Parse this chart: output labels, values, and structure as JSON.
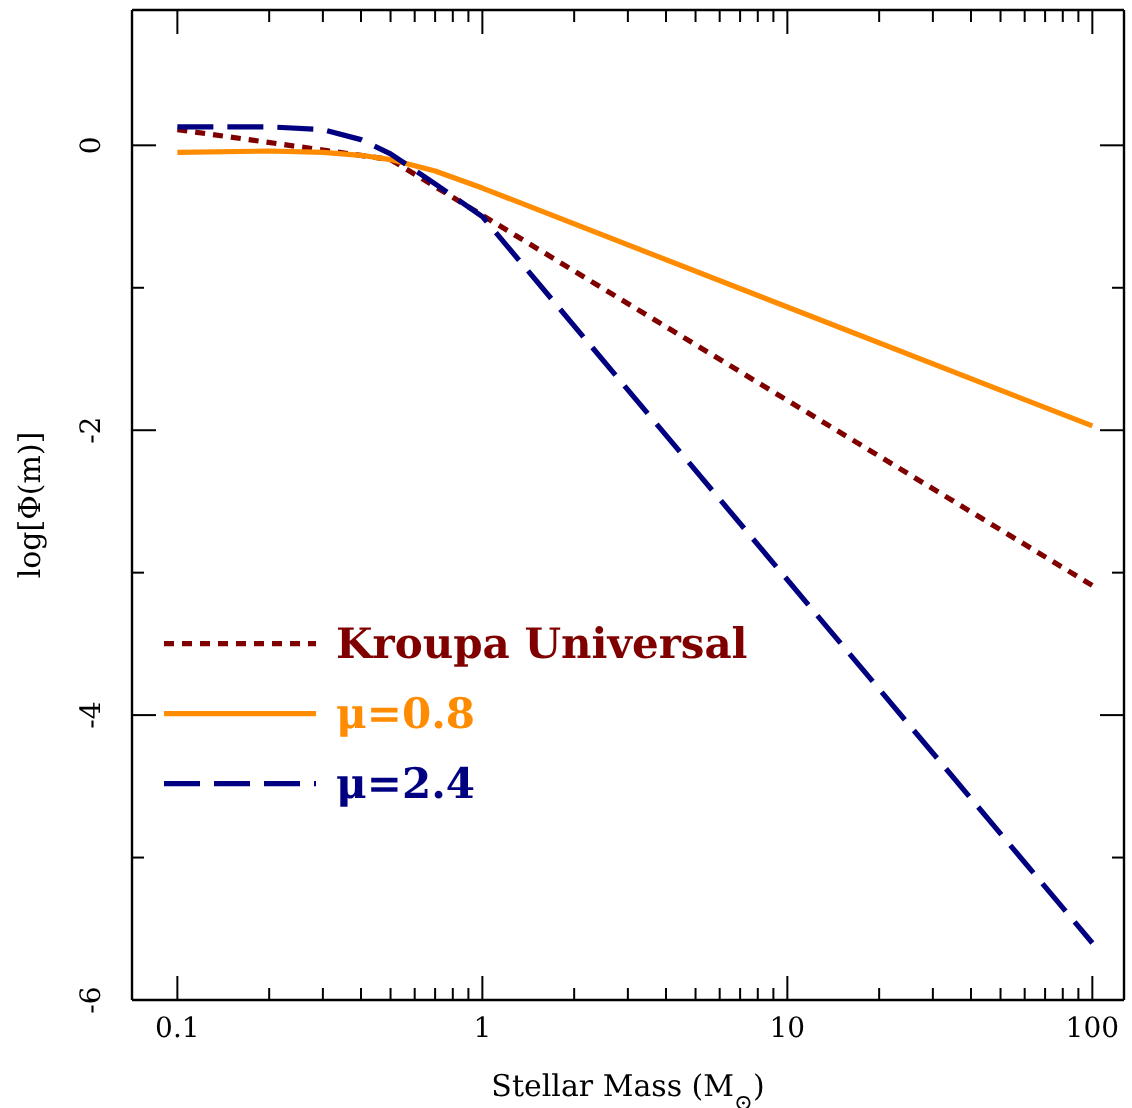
{
  "chart_data": {
    "type": "line",
    "xlabel": "Stellar Mass (M$_{⊙}$)",
    "ylabel": "log[Φ(m)]",
    "log": "x",
    "legend": "left",
    "grid": false,
    "xlim": [
      0.071,
      127
    ],
    "ylim": [
      -6,
      0.95
    ],
    "xticks": [
      0.1,
      {
        "value": 0.2,
        "label": null
      },
      {
        "value": 0.3,
        "label": null
      },
      {
        "value": 0.4,
        "label": null
      },
      {
        "value": 0.5,
        "label": null
      },
      {
        "value": 0.6,
        "label": null
      },
      {
        "value": 0.7,
        "label": null
      },
      {
        "value": 0.8,
        "label": null
      },
      {
        "value": 0.9,
        "label": null
      },
      1,
      {
        "value": 2,
        "label": null
      },
      {
        "value": 3,
        "label": null
      },
      {
        "value": 4,
        "label": null
      },
      {
        "value": 5,
        "label": null
      },
      {
        "value": 6,
        "label": null
      },
      {
        "value": 7,
        "label": null
      },
      {
        "value": 8,
        "label": null
      },
      {
        "value": 9,
        "label": null
      },
      10,
      {
        "value": 20,
        "label": null
      },
      {
        "value": 30,
        "label": null
      },
      {
        "value": 40,
        "label": null
      },
      {
        "value": 50,
        "label": null
      },
      {
        "value": 60,
        "label": null
      },
      {
        "value": 70,
        "label": null
      },
      {
        "value": 80,
        "label": null
      },
      {
        "value": 90,
        "label": null
      },
      100
    ],
    "yticks": [
      -6,
      {
        "value": -5,
        "label": null
      },
      -4,
      {
        "value": -3,
        "label": null
      },
      -2,
      {
        "value": -1,
        "label": null
      },
      0
    ],
    "series": [
      {
        "name": "Kroupa Universal",
        "color": "#800000",
        "line_style": "dotted",
        "x": [
          0.1,
          0.5,
          100
        ],
        "values": [
          0.11,
          -0.1,
          -3.09
        ]
      },
      {
        "name": "μ=0.8",
        "color": "#ff8c00",
        "line_style": "solid",
        "x": [
          0.1,
          0.2,
          0.3,
          0.4,
          0.5,
          0.7,
          1,
          100
        ],
        "values": [
          -0.05,
          -0.04,
          -0.05,
          -0.07,
          -0.1,
          -0.18,
          -0.3,
          -1.97
        ]
      },
      {
        "name": "μ=2.4",
        "color": "#000080",
        "line_style": "dashed",
        "x": [
          0.1,
          0.2,
          0.3,
          0.4,
          0.5,
          0.7,
          1,
          100
        ],
        "values": [
          0.13,
          0.13,
          0.11,
          0.04,
          -0.06,
          -0.27,
          -0.5,
          -5.6
        ]
      }
    ]
  }
}
